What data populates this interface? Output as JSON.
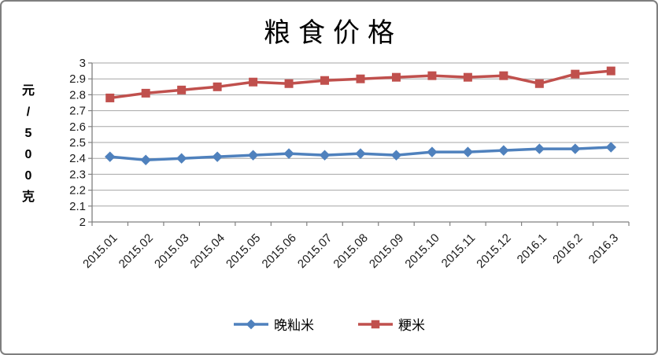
{
  "frame": {
    "background": "#FFFFFF",
    "border_color": "#7F7F7F"
  },
  "chart_data": {
    "type": "line",
    "title": "粮食价格",
    "xlabel": "",
    "ylabel": "元/500克",
    "ylim": [
      2,
      3
    ],
    "y_tick_step": 0.1,
    "y_tick_labels": [
      "3",
      "2.9",
      "2.8",
      "2.7",
      "2.6",
      "2.5",
      "2.4",
      "2.3",
      "2.2",
      "2.1",
      "2"
    ],
    "grid": true,
    "grid_color": "#A6A6A6",
    "axis_color": "#808080",
    "tick_label_color": "#1A1A1A",
    "legend_position": "bottom",
    "categories": [
      "2015.01",
      "2015.02",
      "2015.03",
      "2015.04",
      "2015.05",
      "2015.06",
      "2015.07",
      "2015.08",
      "2015.09",
      "2015.10",
      "2015.11",
      "2015.12",
      "2016.1",
      "2016.2",
      "2016.3"
    ],
    "series": [
      {
        "id": "wanxianmi",
        "name": "晚籼米",
        "color": "#4F81BD",
        "marker": "diamond",
        "values": [
          2.41,
          2.39,
          2.4,
          2.41,
          2.42,
          2.43,
          2.42,
          2.43,
          2.42,
          2.44,
          2.44,
          2.45,
          2.46,
          2.46,
          2.47
        ]
      },
      {
        "id": "jingmi",
        "name": "粳米",
        "color": "#C0504D",
        "marker": "square",
        "values": [
          2.78,
          2.81,
          2.83,
          2.85,
          2.88,
          2.87,
          2.89,
          2.9,
          2.91,
          2.92,
          2.91,
          2.92,
          2.87,
          2.93,
          2.95
        ]
      }
    ]
  }
}
